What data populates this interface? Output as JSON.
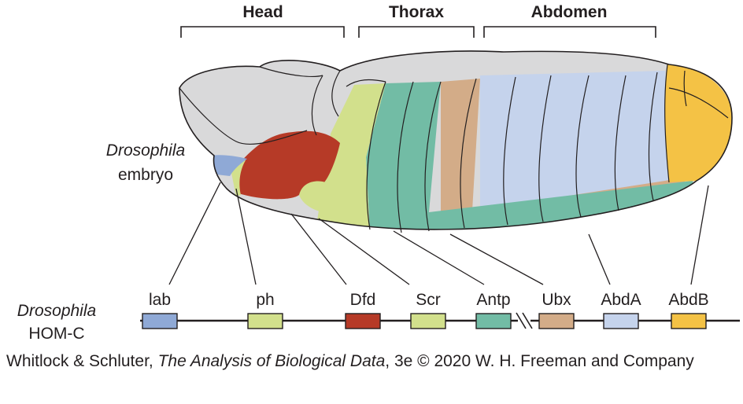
{
  "regions": [
    {
      "name": "Head"
    },
    {
      "name": "Thorax"
    },
    {
      "name": "Abdomen"
    }
  ],
  "embryo_label": {
    "line1": "Drosophila",
    "line2": "embryo"
  },
  "complex_label": {
    "line1": "Drosophila",
    "line2": "HOM-C"
  },
  "genes": [
    {
      "name": "lab",
      "color": "#8fa9d6"
    },
    {
      "name": "ph",
      "color": "#d2e08c"
    },
    {
      "name": "Dfd",
      "color": "#b63a27"
    },
    {
      "name": "Scr",
      "color": "#d2e08c"
    },
    {
      "name": "Antp",
      "color": "#72bca5"
    },
    {
      "name": "Ubx",
      "color": "#d3ac88"
    },
    {
      "name": "AbdA",
      "color": "#c5d3ec"
    },
    {
      "name": "AbdB",
      "color": "#f4c245"
    }
  ],
  "body_color": "#d9d9da",
  "caption": {
    "authors": "Whitlock & Schluter, ",
    "title": "The Analysis of Biological Data",
    "rest": ", 3e © 2020 W. H. Freeman and Company"
  }
}
